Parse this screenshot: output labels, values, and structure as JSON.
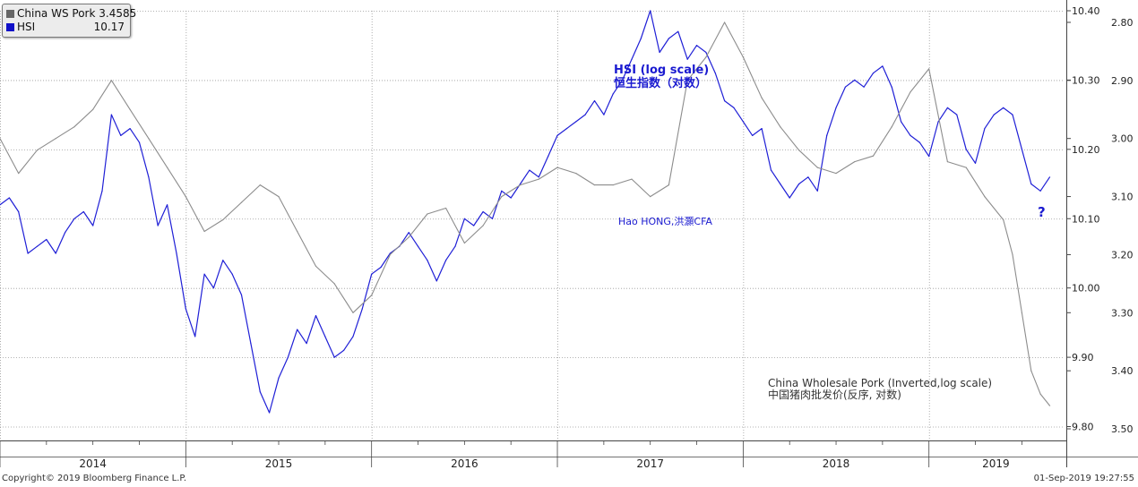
{
  "colors": {
    "hsi": "#1f1fd6",
    "pork": "#8c8c8c",
    "grid": "#9a9a9a",
    "axis": "#444444"
  },
  "legend": {
    "items": [
      {
        "name": "China WS Pork",
        "value": "3.4585",
        "color": "#666666"
      },
      {
        "name": "HSI",
        "value": "10.17",
        "color": "#1010c8"
      }
    ]
  },
  "annotations": {
    "hsi_title_line1": "HSI (log scale)",
    "hsi_title_line2": "恒生指数（对数）",
    "author": "Hao HONG,洪灝CFA",
    "question": "?",
    "pork_line1": "China Wholesale Pork (Inverted,log scale)",
    "pork_line2": "中国猪肉批发价(反序, 对数)"
  },
  "footer": {
    "copyright": "Copyright© 2019 Bloomberg Finance L.P.",
    "timestamp": "01-Sep-2019 19:27:55"
  },
  "chart_data": {
    "type": "line",
    "x_ticks": [
      "2014",
      "2015",
      "2016",
      "2017",
      "2018",
      "2019"
    ],
    "x_range": [
      2014.0,
      2019.72
    ],
    "grid": true,
    "y_left": {
      "label": "",
      "ticks": [
        "9.80",
        "9.90",
        "10.00",
        "10.10",
        "10.20",
        "10.30",
        "10.40"
      ],
      "range": [
        9.78,
        10.4
      ]
    },
    "y_right": {
      "label": "",
      "ticks": [
        "2.80",
        "2.90",
        "3.00",
        "3.10",
        "3.20",
        "3.30",
        "3.40",
        "3.50"
      ],
      "range": [
        2.78,
        3.52
      ],
      "inverted": true
    },
    "series": [
      {
        "name": "HSI",
        "axis": "left",
        "color": "#1f1fd6",
        "x": [
          2014.0,
          2014.05,
          2014.1,
          2014.15,
          2014.2,
          2014.25,
          2014.3,
          2014.35,
          2014.4,
          2014.45,
          2014.5,
          2014.55,
          2014.6,
          2014.65,
          2014.7,
          2014.75,
          2014.8,
          2014.85,
          2014.9,
          2014.95,
          2015.0,
          2015.05,
          2015.1,
          2015.15,
          2015.2,
          2015.25,
          2015.3,
          2015.35,
          2015.4,
          2015.45,
          2015.5,
          2015.55,
          2015.6,
          2015.65,
          2015.7,
          2015.75,
          2015.8,
          2015.85,
          2015.9,
          2015.95,
          2016.0,
          2016.05,
          2016.1,
          2016.15,
          2016.2,
          2016.25,
          2016.3,
          2016.35,
          2016.4,
          2016.45,
          2016.5,
          2016.55,
          2016.6,
          2016.65,
          2016.7,
          2016.75,
          2016.8,
          2016.85,
          2016.9,
          2016.95,
          2017.0,
          2017.05,
          2017.1,
          2017.15,
          2017.2,
          2017.25,
          2017.3,
          2017.35,
          2017.4,
          2017.45,
          2017.5,
          2017.55,
          2017.6,
          2017.65,
          2017.7,
          2017.75,
          2017.8,
          2017.85,
          2017.9,
          2017.95,
          2018.0,
          2018.05,
          2018.1,
          2018.15,
          2018.2,
          2018.25,
          2018.3,
          2018.35,
          2018.4,
          2018.45,
          2018.5,
          2018.55,
          2018.6,
          2018.65,
          2018.7,
          2018.75,
          2018.8,
          2018.85,
          2018.9,
          2018.95,
          2019.0,
          2019.05,
          2019.1,
          2019.15,
          2019.2,
          2019.25,
          2019.3,
          2019.35,
          2019.4,
          2019.45,
          2019.5,
          2019.55,
          2019.6,
          2019.65
        ],
        "values": [
          10.12,
          10.13,
          10.11,
          10.05,
          10.06,
          10.07,
          10.05,
          10.08,
          10.1,
          10.11,
          10.09,
          10.14,
          10.25,
          10.22,
          10.23,
          10.21,
          10.16,
          10.09,
          10.12,
          10.05,
          9.97,
          9.93,
          10.02,
          10.0,
          10.04,
          10.02,
          9.99,
          9.92,
          9.85,
          9.82,
          9.87,
          9.9,
          9.94,
          9.92,
          9.96,
          9.93,
          9.9,
          9.91,
          9.93,
          9.97,
          10.02,
          10.03,
          10.05,
          10.06,
          10.08,
          10.06,
          10.04,
          10.01,
          10.04,
          10.06,
          10.1,
          10.09,
          10.11,
          10.1,
          10.14,
          10.13,
          10.15,
          10.17,
          10.16,
          10.19,
          10.22,
          10.23,
          10.24,
          10.25,
          10.27,
          10.25,
          10.28,
          10.3,
          10.33,
          10.36,
          10.4,
          10.34,
          10.36,
          10.37,
          10.33,
          10.35,
          10.34,
          10.31,
          10.27,
          10.26,
          10.24,
          10.22,
          10.23,
          10.17,
          10.15,
          10.13,
          10.15,
          10.16,
          10.14,
          10.22,
          10.26,
          10.29,
          10.3,
          10.29,
          10.31,
          10.32,
          10.29,
          10.24,
          10.22,
          10.21,
          10.19,
          10.24,
          10.26,
          10.25,
          10.2,
          10.18,
          10.23,
          10.25,
          10.26,
          10.25,
          10.2,
          10.15,
          10.14,
          10.16
        ]
      },
      {
        "name": "China WS Pork",
        "axis": "right",
        "color": "#8c8c8c",
        "x": [
          2014.0,
          2014.1,
          2014.2,
          2014.3,
          2014.4,
          2014.5,
          2014.6,
          2014.7,
          2014.8,
          2014.9,
          2015.0,
          2015.1,
          2015.2,
          2015.3,
          2015.4,
          2015.5,
          2015.6,
          2015.7,
          2015.8,
          2015.9,
          2016.0,
          2016.1,
          2016.2,
          2016.3,
          2016.4,
          2016.5,
          2016.6,
          2016.7,
          2016.8,
          2016.9,
          2017.0,
          2017.1,
          2017.2,
          2017.3,
          2017.4,
          2017.5,
          2017.6,
          2017.7,
          2017.8,
          2017.9,
          2018.0,
          2018.1,
          2018.2,
          2018.3,
          2018.4,
          2018.5,
          2018.6,
          2018.7,
          2018.8,
          2018.9,
          2019.0,
          2019.1,
          2019.2,
          2019.3,
          2019.4,
          2019.45,
          2019.5,
          2019.55,
          2019.6,
          2019.65
        ],
        "values": [
          3.0,
          3.06,
          3.02,
          3.0,
          2.98,
          2.95,
          2.9,
          2.95,
          3.0,
          3.05,
          3.1,
          3.16,
          3.14,
          3.11,
          3.08,
          3.1,
          3.16,
          3.22,
          3.25,
          3.3,
          3.27,
          3.2,
          3.17,
          3.13,
          3.12,
          3.18,
          3.15,
          3.1,
          3.08,
          3.07,
          3.05,
          3.06,
          3.08,
          3.08,
          3.07,
          3.1,
          3.08,
          2.9,
          2.86,
          2.8,
          2.86,
          2.93,
          2.98,
          3.02,
          3.05,
          3.06,
          3.04,
          3.03,
          2.98,
          2.92,
          2.88,
          3.04,
          3.05,
          3.1,
          3.14,
          3.2,
          3.3,
          3.4,
          3.44,
          3.46
        ]
      }
    ]
  }
}
